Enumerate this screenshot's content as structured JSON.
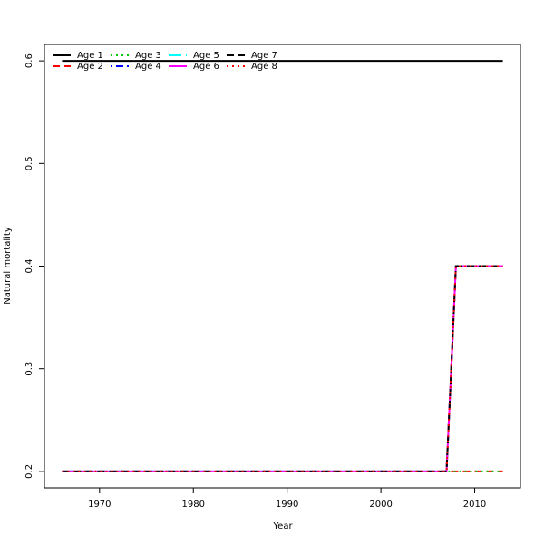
{
  "chart_data": {
    "type": "line",
    "x_label": "Year",
    "y_label": "Natural mortality",
    "x": [
      1966,
      1967,
      1968,
      1969,
      1970,
      1971,
      1972,
      1973,
      1974,
      1975,
      1976,
      1977,
      1978,
      1979,
      1980,
      1981,
      1982,
      1983,
      1984,
      1985,
      1986,
      1987,
      1988,
      1989,
      1990,
      1991,
      1992,
      1993,
      1994,
      1995,
      1996,
      1997,
      1998,
      1999,
      2000,
      2001,
      2002,
      2003,
      2004,
      2005,
      2006,
      2007,
      2008,
      2009,
      2010,
      2011,
      2012,
      2013
    ],
    "xlim": [
      1964.12,
      2014.88
    ],
    "xticks": [
      1970,
      1980,
      1990,
      2000,
      2010
    ],
    "ylim": [
      0.184,
      0.616
    ],
    "yticks": [
      0.2,
      0.3,
      0.4,
      0.5,
      0.6
    ],
    "legend": "top-left",
    "series": [
      {
        "name": "Age 1",
        "color": "#000000",
        "style": "solid",
        "values": [
          0.6,
          0.6,
          0.6,
          0.6,
          0.6,
          0.6,
          0.6,
          0.6,
          0.6,
          0.6,
          0.6,
          0.6,
          0.6,
          0.6,
          0.6,
          0.6,
          0.6,
          0.6,
          0.6,
          0.6,
          0.6,
          0.6,
          0.6,
          0.6,
          0.6,
          0.6,
          0.6,
          0.6,
          0.6,
          0.6,
          0.6,
          0.6,
          0.6,
          0.6,
          0.6,
          0.6,
          0.6,
          0.6,
          0.6,
          0.6,
          0.6,
          0.6,
          0.6,
          0.6,
          0.6,
          0.6,
          0.6,
          0.6
        ]
      },
      {
        "name": "Age 2",
        "color": "#ff0000",
        "style": "dashed",
        "values": [
          0.2,
          0.2,
          0.2,
          0.2,
          0.2,
          0.2,
          0.2,
          0.2,
          0.2,
          0.2,
          0.2,
          0.2,
          0.2,
          0.2,
          0.2,
          0.2,
          0.2,
          0.2,
          0.2,
          0.2,
          0.2,
          0.2,
          0.2,
          0.2,
          0.2,
          0.2,
          0.2,
          0.2,
          0.2,
          0.2,
          0.2,
          0.2,
          0.2,
          0.2,
          0.2,
          0.2,
          0.2,
          0.2,
          0.2,
          0.2,
          0.2,
          0.2,
          0.2,
          0.2,
          0.2,
          0.2,
          0.2,
          0.2
        ]
      },
      {
        "name": "Age 3",
        "color": "#00cd00",
        "style": "dotted",
        "values": [
          0.2,
          0.2,
          0.2,
          0.2,
          0.2,
          0.2,
          0.2,
          0.2,
          0.2,
          0.2,
          0.2,
          0.2,
          0.2,
          0.2,
          0.2,
          0.2,
          0.2,
          0.2,
          0.2,
          0.2,
          0.2,
          0.2,
          0.2,
          0.2,
          0.2,
          0.2,
          0.2,
          0.2,
          0.2,
          0.2,
          0.2,
          0.2,
          0.2,
          0.2,
          0.2,
          0.2,
          0.2,
          0.2,
          0.2,
          0.2,
          0.2,
          0.2,
          0.2,
          0.2,
          0.2,
          0.2,
          0.2,
          0.2
        ]
      },
      {
        "name": "Age 4",
        "color": "#0000ff",
        "style": "dotdash",
        "values": [
          0.2,
          0.2,
          0.2,
          0.2,
          0.2,
          0.2,
          0.2,
          0.2,
          0.2,
          0.2,
          0.2,
          0.2,
          0.2,
          0.2,
          0.2,
          0.2,
          0.2,
          0.2,
          0.2,
          0.2,
          0.2,
          0.2,
          0.2,
          0.2,
          0.2,
          0.2,
          0.2,
          0.2,
          0.2,
          0.2,
          0.2,
          0.2,
          0.2,
          0.2,
          0.2,
          0.2,
          0.2,
          0.2,
          0.2,
          0.2,
          0.2,
          0.2,
          0.4,
          0.4,
          0.4,
          0.4,
          0.4,
          0.4
        ]
      },
      {
        "name": "Age 5",
        "color": "#00ffff",
        "style": "longdash",
        "values": [
          0.2,
          0.2,
          0.2,
          0.2,
          0.2,
          0.2,
          0.2,
          0.2,
          0.2,
          0.2,
          0.2,
          0.2,
          0.2,
          0.2,
          0.2,
          0.2,
          0.2,
          0.2,
          0.2,
          0.2,
          0.2,
          0.2,
          0.2,
          0.2,
          0.2,
          0.2,
          0.2,
          0.2,
          0.2,
          0.2,
          0.2,
          0.2,
          0.2,
          0.2,
          0.2,
          0.2,
          0.2,
          0.2,
          0.2,
          0.2,
          0.2,
          0.2,
          0.4,
          0.4,
          0.4,
          0.4,
          0.4,
          0.4
        ]
      },
      {
        "name": "Age 6",
        "color": "#ff00ff",
        "style": "solid",
        "values": [
          0.2,
          0.2,
          0.2,
          0.2,
          0.2,
          0.2,
          0.2,
          0.2,
          0.2,
          0.2,
          0.2,
          0.2,
          0.2,
          0.2,
          0.2,
          0.2,
          0.2,
          0.2,
          0.2,
          0.2,
          0.2,
          0.2,
          0.2,
          0.2,
          0.2,
          0.2,
          0.2,
          0.2,
          0.2,
          0.2,
          0.2,
          0.2,
          0.2,
          0.2,
          0.2,
          0.2,
          0.2,
          0.2,
          0.2,
          0.2,
          0.2,
          0.2,
          0.4,
          0.4,
          0.4,
          0.4,
          0.4,
          0.4
        ]
      },
      {
        "name": "Age 7",
        "color": "#000000",
        "style": "dashed",
        "values": [
          0.2,
          0.2,
          0.2,
          0.2,
          0.2,
          0.2,
          0.2,
          0.2,
          0.2,
          0.2,
          0.2,
          0.2,
          0.2,
          0.2,
          0.2,
          0.2,
          0.2,
          0.2,
          0.2,
          0.2,
          0.2,
          0.2,
          0.2,
          0.2,
          0.2,
          0.2,
          0.2,
          0.2,
          0.2,
          0.2,
          0.2,
          0.2,
          0.2,
          0.2,
          0.2,
          0.2,
          0.2,
          0.2,
          0.2,
          0.2,
          0.2,
          0.2,
          0.4,
          0.4,
          0.4,
          0.4,
          0.4,
          0.4
        ]
      },
      {
        "name": "Age 8",
        "color": "#ff0000",
        "style": "dotted",
        "values": [
          0.2,
          0.2,
          0.2,
          0.2,
          0.2,
          0.2,
          0.2,
          0.2,
          0.2,
          0.2,
          0.2,
          0.2,
          0.2,
          0.2,
          0.2,
          0.2,
          0.2,
          0.2,
          0.2,
          0.2,
          0.2,
          0.2,
          0.2,
          0.2,
          0.2,
          0.2,
          0.2,
          0.2,
          0.2,
          0.2,
          0.2,
          0.2,
          0.2,
          0.2,
          0.2,
          0.2,
          0.2,
          0.2,
          0.2,
          0.2,
          0.2,
          0.2,
          0.4,
          0.4,
          0.4,
          0.4,
          0.4,
          0.4
        ]
      }
    ]
  }
}
